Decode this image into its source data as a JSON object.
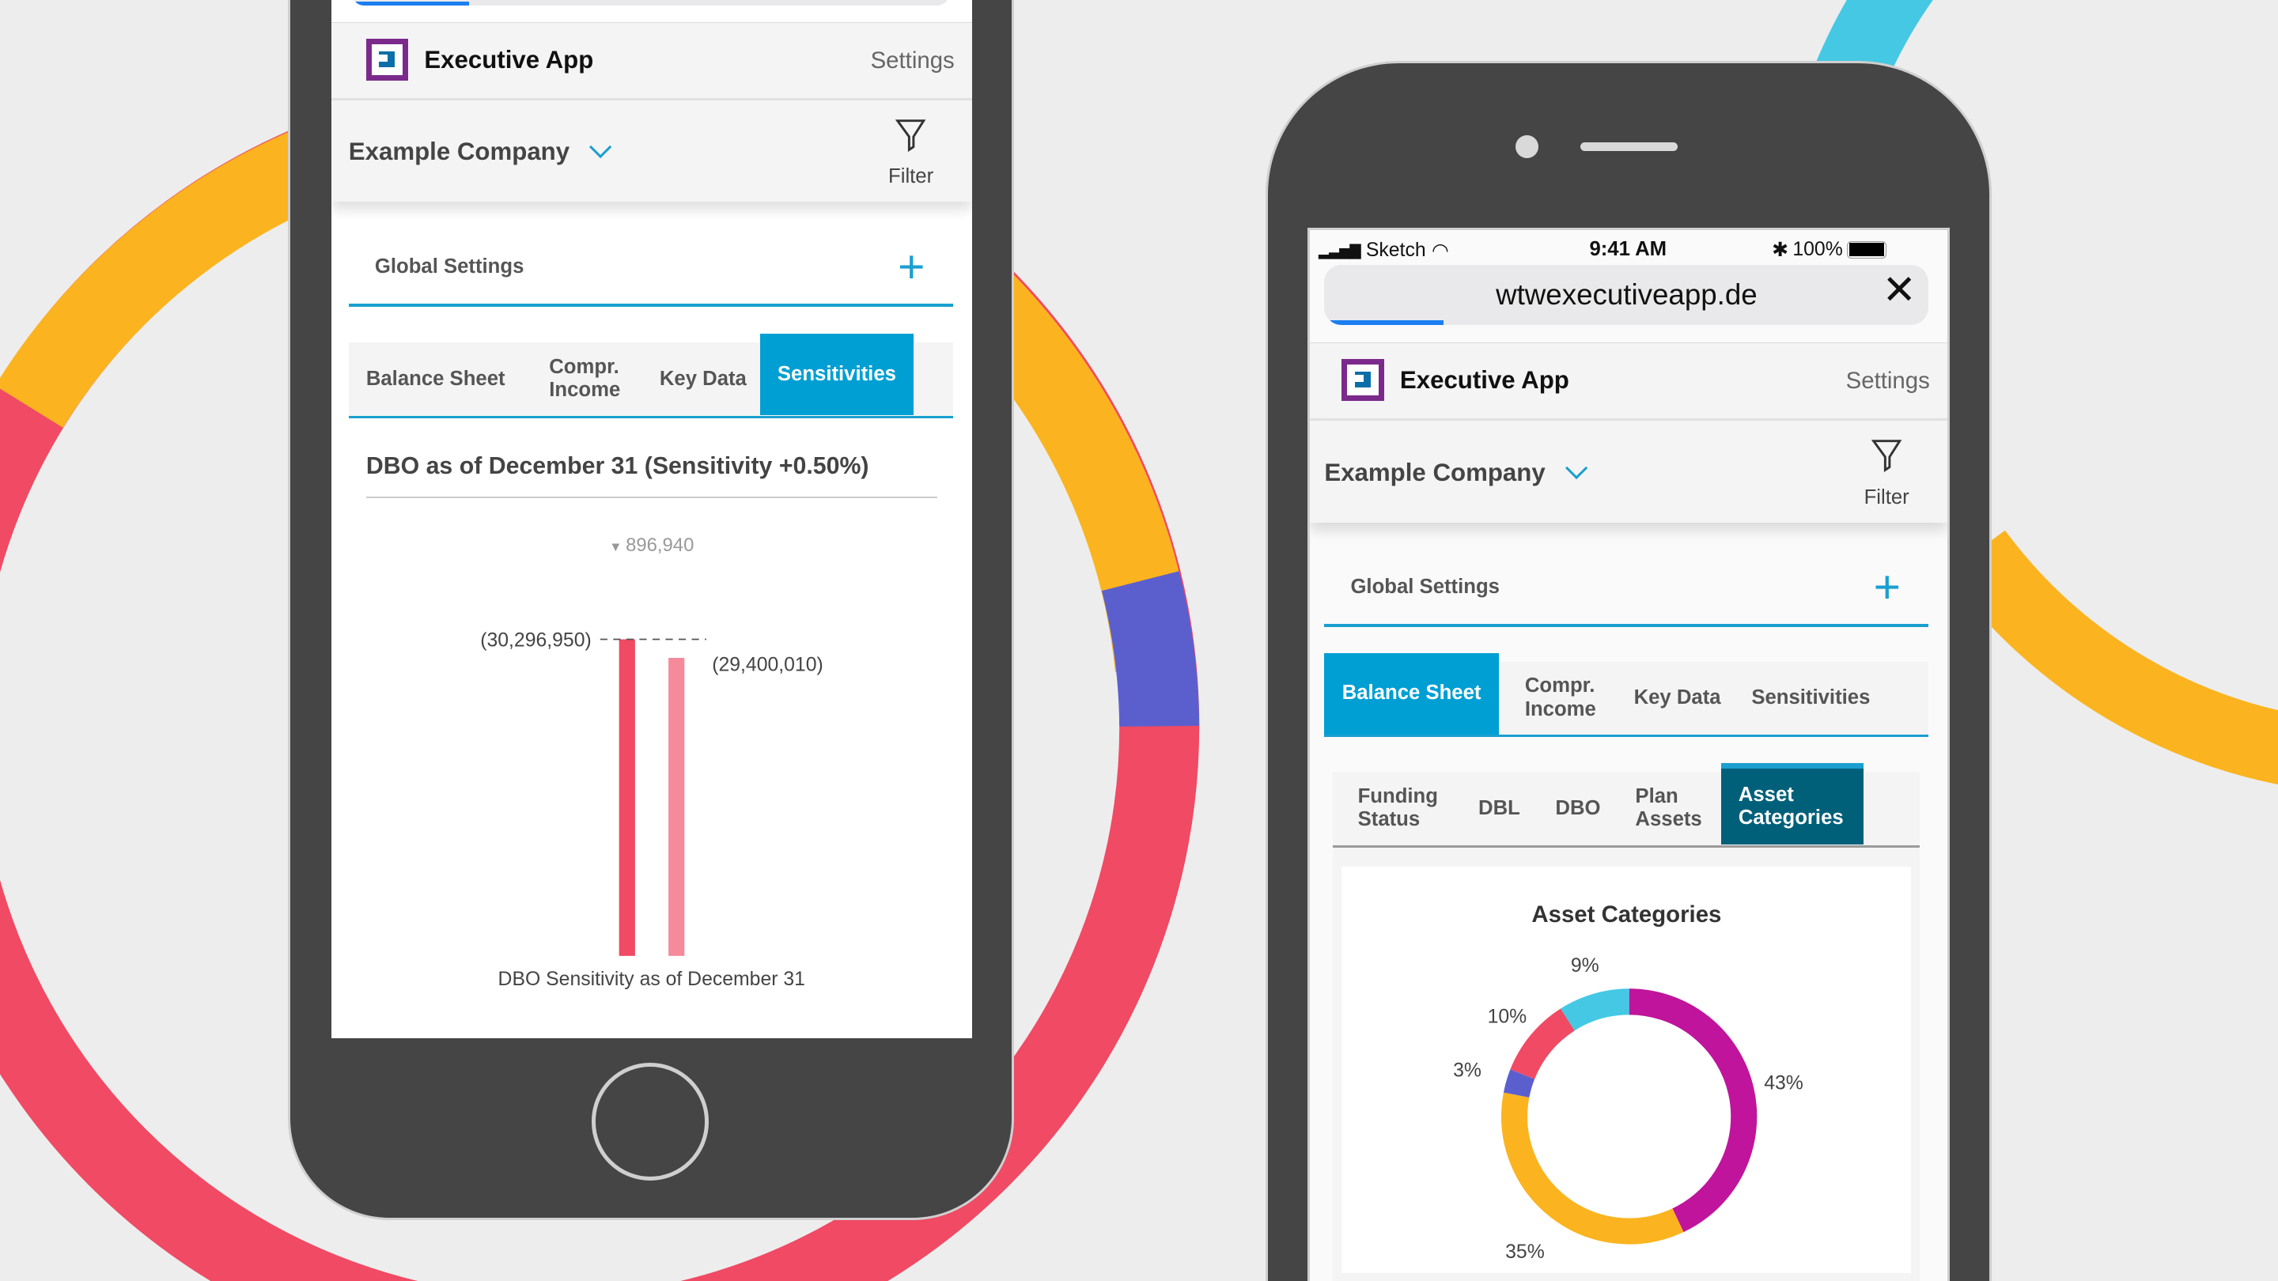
{
  "colors": {
    "orange": "#fbb41f",
    "red": "#f04a64",
    "indigo": "#5b5fce",
    "cyan": "#45c8e4",
    "magenta": "#c0149c",
    "accent": "#009fd3",
    "dark_tab": "#00607a",
    "phone": "#454545"
  },
  "left_phone": {
    "header": {
      "app_title": "Executive App",
      "settings": "Settings",
      "logo": "executive-app-logo"
    },
    "company": {
      "name": "Example Company",
      "filter": "Filter"
    },
    "global_settings": "Global Settings",
    "tabs": [
      {
        "label": "Balance Sheet"
      },
      {
        "label": "Compr. Income"
      },
      {
        "label": "Key Data"
      },
      {
        "label": "Sensitivities",
        "active": true
      }
    ],
    "panel_title": "DBO as of December 31 (Sensitivity +0.50%)",
    "delta": "896,940"
  },
  "right_phone": {
    "status": {
      "carrier": "Sketch",
      "time": "9:41 AM",
      "battery": "100%"
    },
    "url": "wtwexecutiveapp.de",
    "header": {
      "app_title": "Executive App",
      "settings": "Settings",
      "logo": "executive-app-logo"
    },
    "company": {
      "name": "Example Company",
      "filter": "Filter"
    },
    "global_settings": "Global Settings",
    "tabs": [
      {
        "label": "Balance Sheet",
        "active": true
      },
      {
        "label": "Compr. Income"
      },
      {
        "label": "Key Data"
      },
      {
        "label": "Sensitivities"
      }
    ],
    "subtabs": [
      {
        "label": "Funding Status"
      },
      {
        "label": "DBL"
      },
      {
        "label": "DBO"
      },
      {
        "label": "Plan Assets"
      },
      {
        "label": "Asset Categories",
        "active": true
      }
    ]
  },
  "chart_data": [
    {
      "type": "bar",
      "title": "",
      "xlabel": "DBO Sensitivity as of December 31",
      "ylim": [
        15000000,
        31000000
      ],
      "values": [
        30296950,
        29400010
      ],
      "labels": [
        "(30,296,950)",
        "(29,400,010)"
      ],
      "colors": [
        "#f04a64",
        "#f58a9b"
      ],
      "annotation": "896,940"
    },
    {
      "type": "pie",
      "title": "Asset Categories",
      "hole": true,
      "values": [
        43,
        35,
        3,
        10,
        9
      ],
      "labels": [
        "43%",
        "35%",
        "3%",
        "10%",
        "9%"
      ],
      "colors": [
        "#c0149c",
        "#fbb41f",
        "#5b5fce",
        "#f04a64",
        "#45c8e4"
      ]
    }
  ]
}
